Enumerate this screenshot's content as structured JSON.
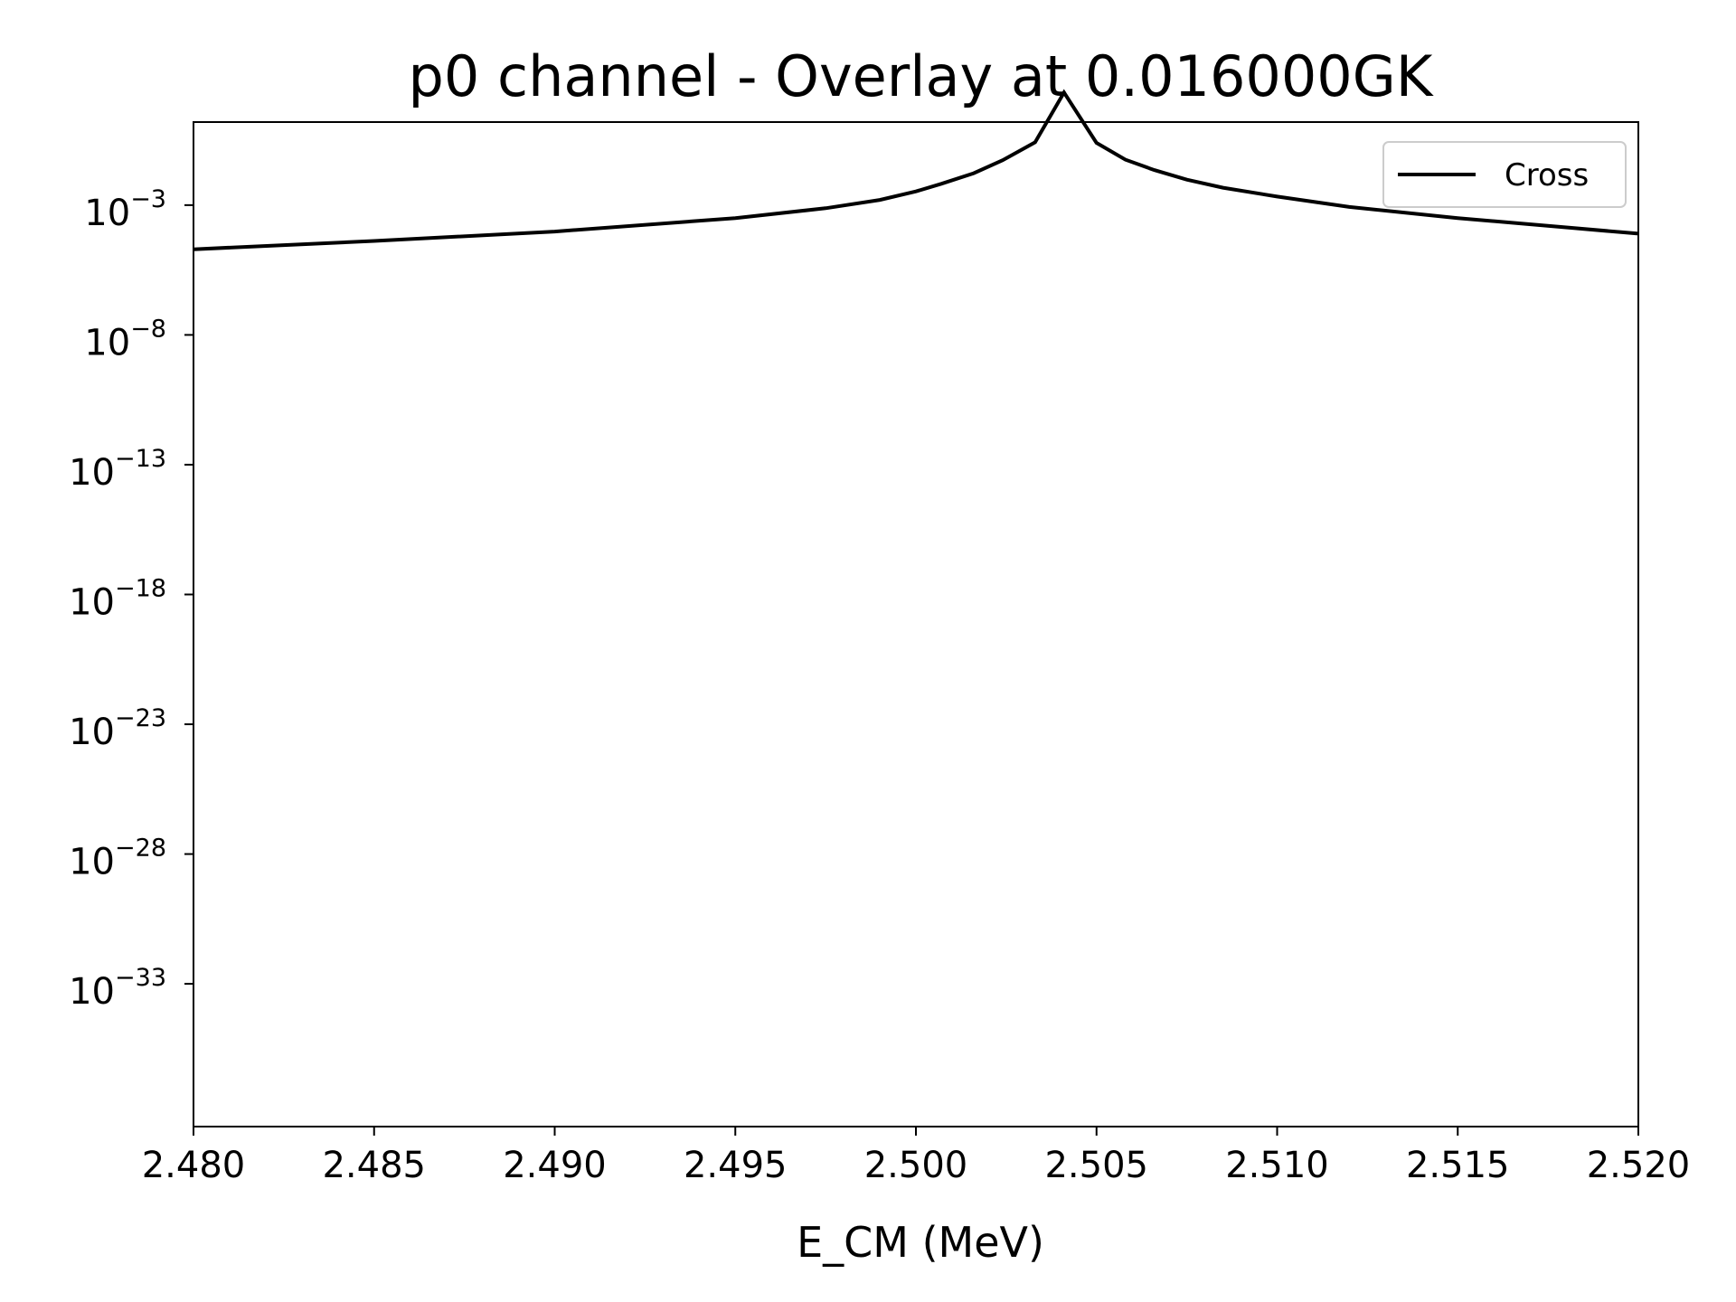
{
  "chart_data": {
    "type": "line",
    "title": "p0 channel - Overlay at 0.016000GK",
    "xlabel": "E_CM (MeV)",
    "ylabel": "",
    "xlim": [
      2.48,
      2.52
    ],
    "ylim_log10": [
      -38.5,
      0.2
    ],
    "y_scale": "log",
    "x_ticks": [
      {
        "value": 2.48,
        "label": "2.480"
      },
      {
        "value": 2.485,
        "label": "2.485"
      },
      {
        "value": 2.49,
        "label": "2.490"
      },
      {
        "value": 2.495,
        "label": "2.495"
      },
      {
        "value": 2.5,
        "label": "2.500"
      },
      {
        "value": 2.505,
        "label": "2.505"
      },
      {
        "value": 2.51,
        "label": "2.510"
      },
      {
        "value": 2.515,
        "label": "2.515"
      },
      {
        "value": 2.52,
        "label": "2.520"
      }
    ],
    "y_ticks": [
      {
        "exp": -3,
        "base": "10",
        "sup": "−3"
      },
      {
        "exp": -8,
        "base": "10",
        "sup": "−8"
      },
      {
        "exp": -13,
        "base": "10",
        "sup": "−13"
      },
      {
        "exp": -18,
        "base": "10",
        "sup": "−18"
      },
      {
        "exp": -23,
        "base": "10",
        "sup": "−23"
      },
      {
        "exp": -28,
        "base": "10",
        "sup": "−28"
      },
      {
        "exp": -33,
        "base": "10",
        "sup": "−33"
      }
    ],
    "grid": false,
    "legend_position": "top-right",
    "series": [
      {
        "name": "Cross",
        "color": "#000000",
        "x": [
          2.48,
          2.485,
          2.49,
          2.495,
          2.4975,
          2.499,
          2.5,
          2.5007,
          2.5016,
          2.5024,
          2.5033,
          2.5041,
          2.505,
          2.5058,
          2.5066,
          2.5075,
          2.5085,
          2.51,
          2.512,
          2.515,
          2.52
        ],
        "y_log10": [
          -4.7,
          -4.38,
          -4.02,
          -3.5,
          -3.12,
          -2.8,
          -2.47,
          -2.18,
          -1.77,
          -1.27,
          -0.58,
          1.34,
          -0.6,
          -1.25,
          -1.65,
          -2.02,
          -2.33,
          -2.67,
          -3.07,
          -3.5,
          -4.1
        ]
      }
    ]
  }
}
